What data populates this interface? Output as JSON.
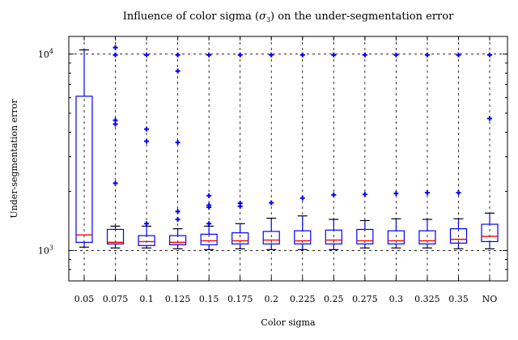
{
  "chart_data": {
    "type": "box",
    "title": "Influence of color sigma (σ3) on the under-segmentation error",
    "title_prefix": "Influence of color sigma (",
    "title_symbol": "σ",
    "title_subscript": "3",
    "title_suffix": ") on the under-segmentation error",
    "xlabel": "Color sigma",
    "ylabel": "Under-segmentation error",
    "yscale": "log",
    "ylim": [
      700,
      12300
    ],
    "y_major_ticks": [
      {
        "value": 1000,
        "base": "10",
        "exp": "3"
      },
      {
        "value": 10000,
        "base": "10",
        "exp": "4"
      }
    ],
    "grid": "dashed",
    "colors": {
      "box": "#0000ff",
      "median": "#ff0000",
      "whisker": "#0000ff",
      "cap": "#000000",
      "outlier": "#0000ff"
    },
    "categories": [
      "0.05",
      "0.075",
      "0.1",
      "0.125",
      "0.15",
      "0.175",
      "0.2",
      "0.225",
      "0.25",
      "0.275",
      "0.3",
      "0.325",
      "0.35",
      "NO"
    ],
    "boxes": [
      {
        "q1": 1100,
        "median": 1200,
        "q3": 6100,
        "whisker_low": 1040,
        "whisker_high": 10500,
        "outliers": []
      },
      {
        "q1": 1080,
        "median": 1100,
        "q3": 1280,
        "whisker_low": 1030,
        "whisker_high": 1330,
        "outliers": [
          2200,
          4400,
          4600,
          9900,
          10800
        ]
      },
      {
        "q1": 1060,
        "median": 1110,
        "q3": 1190,
        "whisker_low": 1030,
        "whisker_high": 1330,
        "outliers": [
          1370,
          3600,
          4150,
          9900
        ]
      },
      {
        "q1": 1070,
        "median": 1100,
        "q3": 1190,
        "whisker_low": 1020,
        "whisker_high": 1290,
        "outliers": [
          1440,
          1580,
          3550,
          8200,
          9900
        ]
      },
      {
        "q1": 1070,
        "median": 1120,
        "q3": 1210,
        "whisker_low": 1010,
        "whisker_high": 1330,
        "outliers": [
          1370,
          1660,
          1700,
          1900,
          9900
        ]
      },
      {
        "q1": 1080,
        "median": 1120,
        "q3": 1230,
        "whisker_low": 1020,
        "whisker_high": 1370,
        "outliers": [
          1680,
          1740,
          9900
        ]
      },
      {
        "q1": 1080,
        "median": 1130,
        "q3": 1250,
        "whisker_low": 1010,
        "whisker_high": 1460,
        "outliers": [
          1750,
          9900
        ]
      },
      {
        "q1": 1080,
        "median": 1120,
        "q3": 1260,
        "whisker_low": 1010,
        "whisker_high": 1500,
        "outliers": [
          1850,
          9900
        ]
      },
      {
        "q1": 1080,
        "median": 1130,
        "q3": 1270,
        "whisker_low": 1010,
        "whisker_high": 1440,
        "outliers": [
          1920,
          9900
        ]
      },
      {
        "q1": 1080,
        "median": 1120,
        "q3": 1280,
        "whisker_low": 1030,
        "whisker_high": 1420,
        "outliers": [
          1930,
          9900
        ]
      },
      {
        "q1": 1080,
        "median": 1120,
        "q3": 1260,
        "whisker_low": 1030,
        "whisker_high": 1450,
        "outliers": [
          1950,
          9900
        ]
      },
      {
        "q1": 1080,
        "median": 1120,
        "q3": 1260,
        "whisker_low": 1030,
        "whisker_high": 1440,
        "outliers": [
          1970,
          9900
        ]
      },
      {
        "q1": 1090,
        "median": 1140,
        "q3": 1290,
        "whisker_low": 1020,
        "whisker_high": 1450,
        "outliers": [
          1970,
          9900
        ]
      },
      {
        "q1": 1110,
        "median": 1180,
        "q3": 1360,
        "whisker_low": 1020,
        "whisker_high": 1550,
        "outliers": [
          4700,
          9900
        ]
      }
    ]
  }
}
